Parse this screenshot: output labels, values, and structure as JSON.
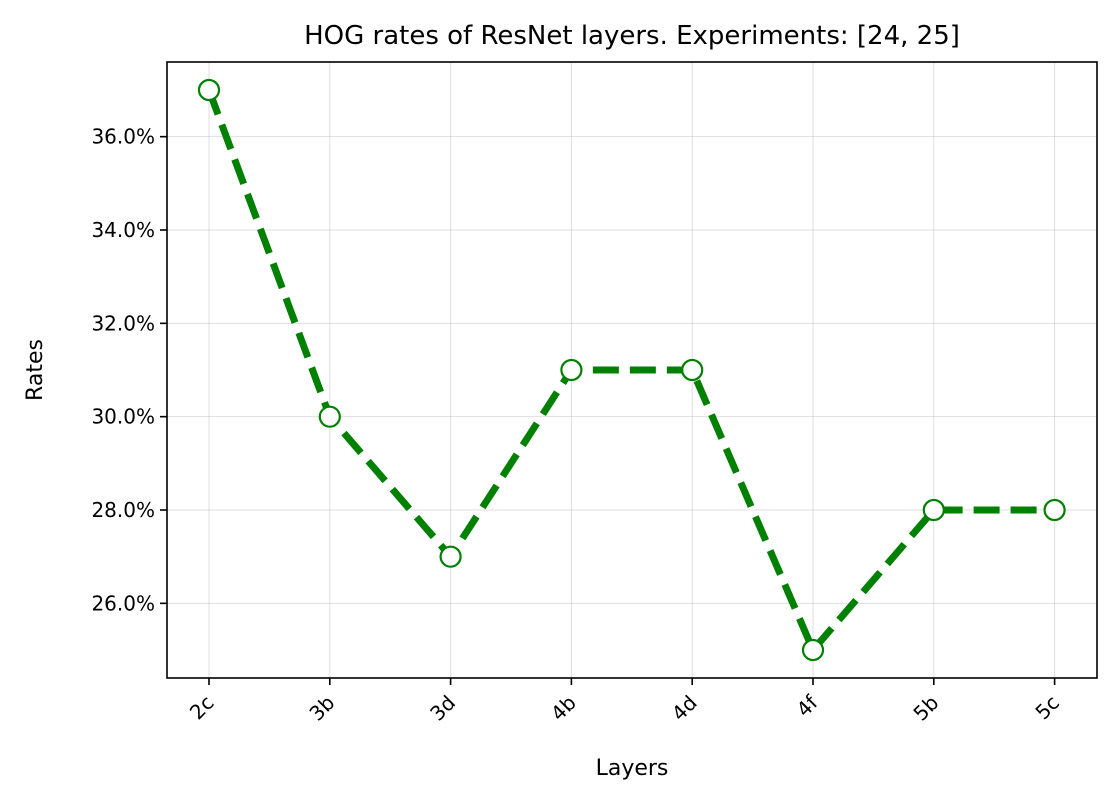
{
  "chart_data": {
    "type": "line",
    "title": "HOG rates of ResNet layers. Experiments: [24, 25]",
    "xlabel": "Layers",
    "ylabel": "Rates",
    "categories": [
      "2c",
      "3b",
      "3d",
      "4b",
      "4d",
      "4f",
      "5b",
      "5c"
    ],
    "series": [
      {
        "values": [
          0.37,
          0.3,
          0.27,
          0.31,
          0.31,
          0.25,
          0.28,
          0.28
        ],
        "color": "#008000",
        "line_style": "dashed",
        "marker": "circle",
        "marker_face": "#ffffff"
      }
    ],
    "yticks": [
      0.26,
      0.28,
      0.3,
      0.32,
      0.34,
      0.36
    ],
    "ytick_labels": [
      "26.0%",
      "28.0%",
      "30.0%",
      "32.0%",
      "34.0%",
      "36.0%"
    ],
    "ylim": [
      0.244,
      0.376
    ],
    "grid": true,
    "xtick_rotation": 45
  }
}
